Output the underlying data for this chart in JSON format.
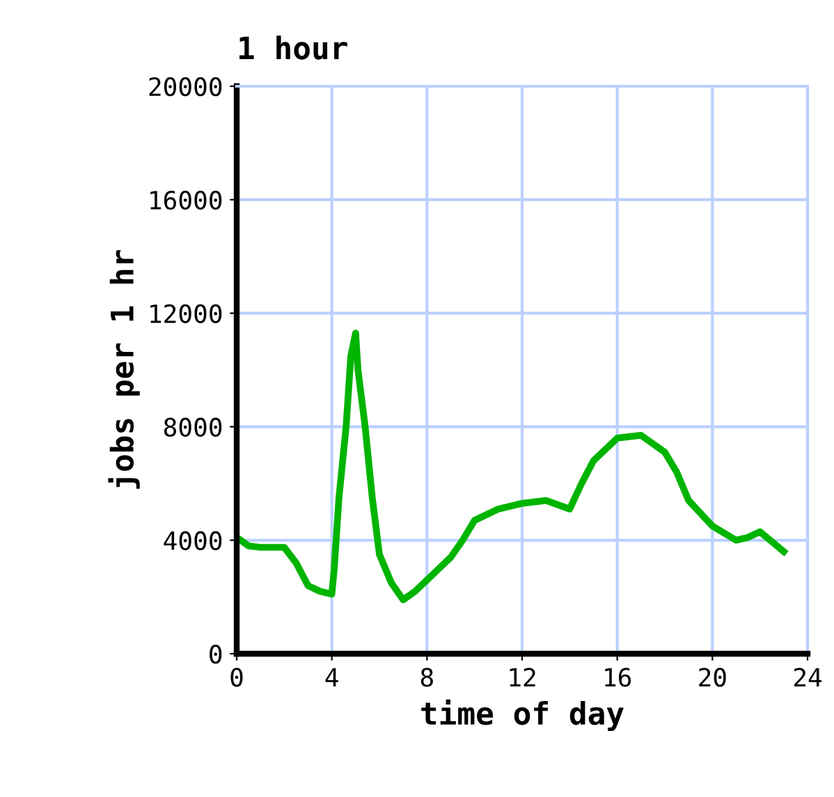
{
  "chart_data": {
    "type": "line",
    "title": "1 hour",
    "xlabel": "time of day",
    "ylabel": "jobs per 1 hr",
    "x": [
      0,
      0.5,
      1,
      2,
      2.5,
      3,
      3.5,
      4,
      4.1,
      4.3,
      4.6,
      4.8,
      5,
      5.1,
      5.4,
      5.7,
      6,
      6.5,
      7,
      7.5,
      8,
      9,
      9.5,
      10,
      11,
      12,
      13,
      14,
      14.5,
      15,
      16,
      17,
      18,
      18.5,
      19,
      20,
      21,
      21.5,
      22,
      23
    ],
    "series": [
      {
        "color": "#00b400",
        "values": [
          4100,
          3800,
          3750,
          3750,
          3200,
          2400,
          2200,
          2100,
          3000,
          5500,
          8000,
          10500,
          11300,
          10000,
          8000,
          5500,
          3500,
          2500,
          1900,
          2200,
          2600,
          3400,
          4000,
          4700,
          5100,
          5300,
          5400,
          5100,
          6000,
          6800,
          7600,
          7700,
          7100,
          6400,
          5400,
          4500,
          4000,
          4100,
          4300,
          3600
        ]
      }
    ],
    "xlim": [
      0,
      24
    ],
    "xticks": [
      0,
      4,
      8,
      12,
      16,
      20,
      24
    ],
    "ylim": [
      0,
      20000
    ],
    "yticks": [
      0,
      4000,
      8000,
      12000,
      16000,
      20000
    ],
    "grid": true
  }
}
